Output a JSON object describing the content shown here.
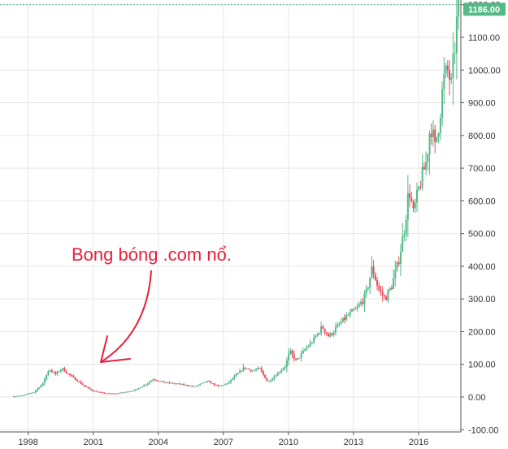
{
  "chart_data": {
    "type": "candlestick",
    "title": "",
    "xlabel": "",
    "ylabel": "",
    "y_ticks": [
      "1200.00",
      "1100.00",
      "1000.00",
      "900.00",
      "800.00",
      "700.00",
      "600.00",
      "500.00",
      "400.00",
      "300.00",
      "200.00",
      "100.00",
      "0.00",
      "-100.00"
    ],
    "x_ticks": [
      "1998",
      "2001",
      "2004",
      "2007",
      "2010",
      "2013",
      "2016"
    ],
    "x_tick_years": [
      1998,
      2001,
      2004,
      2007,
      2010,
      2013,
      2016
    ],
    "ylim": [
      -100,
      1200
    ],
    "xlim": [
      1996.7,
      2017.95
    ],
    "grid": true,
    "last_price": "1186.00",
    "up_color": "#53b987",
    "down_color": "#eb4d5c",
    "annotation": "Bong bóng .com nổ.",
    "keypoints": [
      [
        1997.3,
        2
      ],
      [
        1997.8,
        5
      ],
      [
        1998.3,
        15
      ],
      [
        1998.7,
        40
      ],
      [
        1999.0,
        85
      ],
      [
        1999.3,
        70
      ],
      [
        1999.6,
        88
      ],
      [
        1999.8,
        75
      ],
      [
        2000.2,
        55
      ],
      [
        2000.6,
        35
      ],
      [
        2001.0,
        20
      ],
      [
        2001.5,
        12
      ],
      [
        2002.0,
        10
      ],
      [
        2002.5,
        15
      ],
      [
        2003.0,
        22
      ],
      [
        2003.5,
        40
      ],
      [
        2003.8,
        55
      ],
      [
        2004.3,
        45
      ],
      [
        2005.0,
        40
      ],
      [
        2005.7,
        32
      ],
      [
        2006.3,
        48
      ],
      [
        2006.8,
        33
      ],
      [
        2007.2,
        40
      ],
      [
        2007.6,
        65
      ],
      [
        2008.0,
        90
      ],
      [
        2008.4,
        80
      ],
      [
        2008.7,
        88
      ],
      [
        2009.1,
        45
      ],
      [
        2009.5,
        70
      ],
      [
        2009.9,
        95
      ],
      [
        2010.1,
        140
      ],
      [
        2010.4,
        110
      ],
      [
        2010.8,
        145
      ],
      [
        2011.2,
        175
      ],
      [
        2011.6,
        215
      ],
      [
        2011.9,
        185
      ],
      [
        2012.3,
        215
      ],
      [
        2012.7,
        245
      ],
      [
        2013.2,
        270
      ],
      [
        2013.6,
        310
      ],
      [
        2013.9,
        395
      ],
      [
        2014.2,
        330
      ],
      [
        2014.5,
        300
      ],
      [
        2014.8,
        340
      ],
      [
        2015.1,
        410
      ],
      [
        2015.4,
        520
      ],
      [
        2015.6,
        640
      ],
      [
        2015.8,
        560
      ],
      [
        2016.1,
        650
      ],
      [
        2016.4,
        720
      ],
      [
        2016.6,
        840
      ],
      [
        2016.8,
        760
      ],
      [
        2017.0,
        850
      ],
      [
        2017.2,
        970
      ],
      [
        2017.4,
        1000
      ],
      [
        2017.55,
        950
      ],
      [
        2017.7,
        1060
      ],
      [
        2017.85,
        1186
      ]
    ]
  }
}
